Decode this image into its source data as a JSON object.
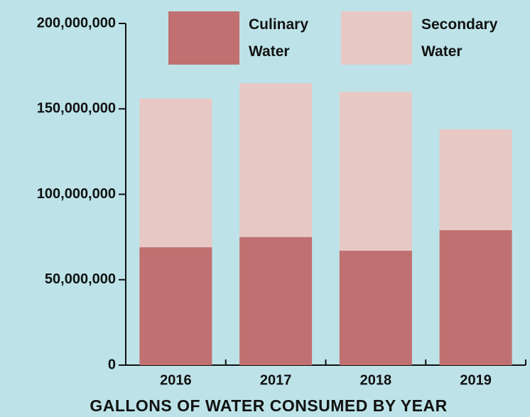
{
  "chart_data": {
    "type": "stacked_bar",
    "title": "GALLONS OF WATER CONSUMED BY YEAR",
    "categories": [
      "2016",
      "2017",
      "2018",
      "2019"
    ],
    "series": [
      {
        "name": "Culinary Water",
        "color": "#c07070",
        "values": [
          69000000,
          75000000,
          67000000,
          79000000
        ]
      },
      {
        "name": "Secondary Water",
        "color": "#e8c8c4",
        "values": [
          87000000,
          90000000,
          93000000,
          59000000
        ]
      }
    ],
    "ylim": [
      0,
      200000000
    ],
    "yticks": [
      0,
      {
        "value": 50000000,
        "label": "50,000,000"
      },
      {
        "value": 100000000,
        "label": "100,000,000"
      },
      {
        "value": 150000000,
        "label": "150,000,000"
      },
      {
        "value": 200000000,
        "label": "200,000,000"
      }
    ]
  }
}
